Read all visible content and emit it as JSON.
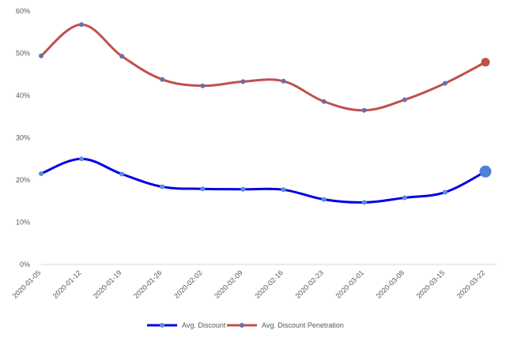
{
  "chart_data": {
    "type": "line",
    "title": "",
    "xlabel": "",
    "ylabel": "",
    "ylim": [
      0,
      60
    ],
    "yticks": [
      0,
      10,
      20,
      30,
      40,
      50,
      60
    ],
    "ytick_labels": [
      "0%",
      "10%",
      "20%",
      "30%",
      "40%",
      "50%",
      "60%"
    ],
    "grid": false,
    "legend_position": "bottom",
    "categories": [
      "2020-01-05",
      "2020-01-12",
      "2020-01-19",
      "2020-01-26",
      "2020-02-02",
      "2020-02-09",
      "2020-02-16",
      "2020-02-23",
      "2020-03-01",
      "2020-03-08",
      "2020-03-15",
      "2020-03-22"
    ],
    "series": [
      {
        "name": "Avg. Discount",
        "color": "#0000e6",
        "marker_color": "#5b8fd4",
        "values": [
          21.5,
          25.0,
          21.4,
          18.4,
          17.9,
          17.8,
          17.7,
          15.4,
          14.7,
          15.8,
          17.1,
          22.0
        ]
      },
      {
        "name": "Avg. Discount Penetration",
        "color": "#c0504d",
        "marker_color": "#6b6fa8",
        "values": [
          49.4,
          56.8,
          49.3,
          43.8,
          42.3,
          43.3,
          43.4,
          38.6,
          36.5,
          39.0,
          42.9,
          47.9
        ]
      }
    ]
  }
}
